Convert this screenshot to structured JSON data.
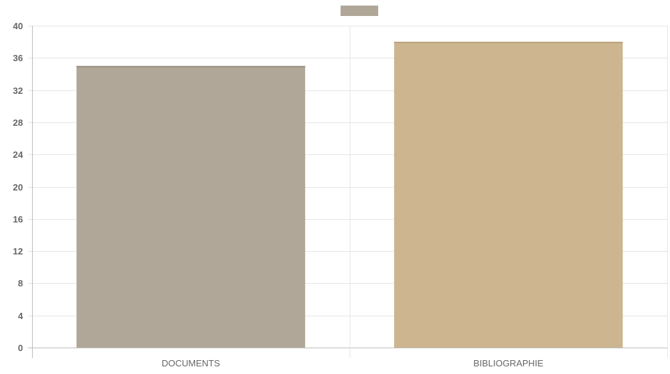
{
  "chart_data": {
    "type": "bar",
    "title": "",
    "xlabel": "",
    "ylabel": "",
    "categories": [
      "DOCUMENTS",
      "BIBLIOGRAPHIE"
    ],
    "values": [
      35,
      38
    ],
    "bar_colors": [
      "#b0a798",
      "#ccb58f"
    ],
    "legend_color": "#b0a798",
    "legend_position": "top-center",
    "ylim": [
      0,
      40
    ],
    "y_ticks": [
      "0",
      "4",
      "8",
      "12",
      "16",
      "20",
      "24",
      "28",
      "32",
      "36",
      "40"
    ],
    "grid": true
  }
}
